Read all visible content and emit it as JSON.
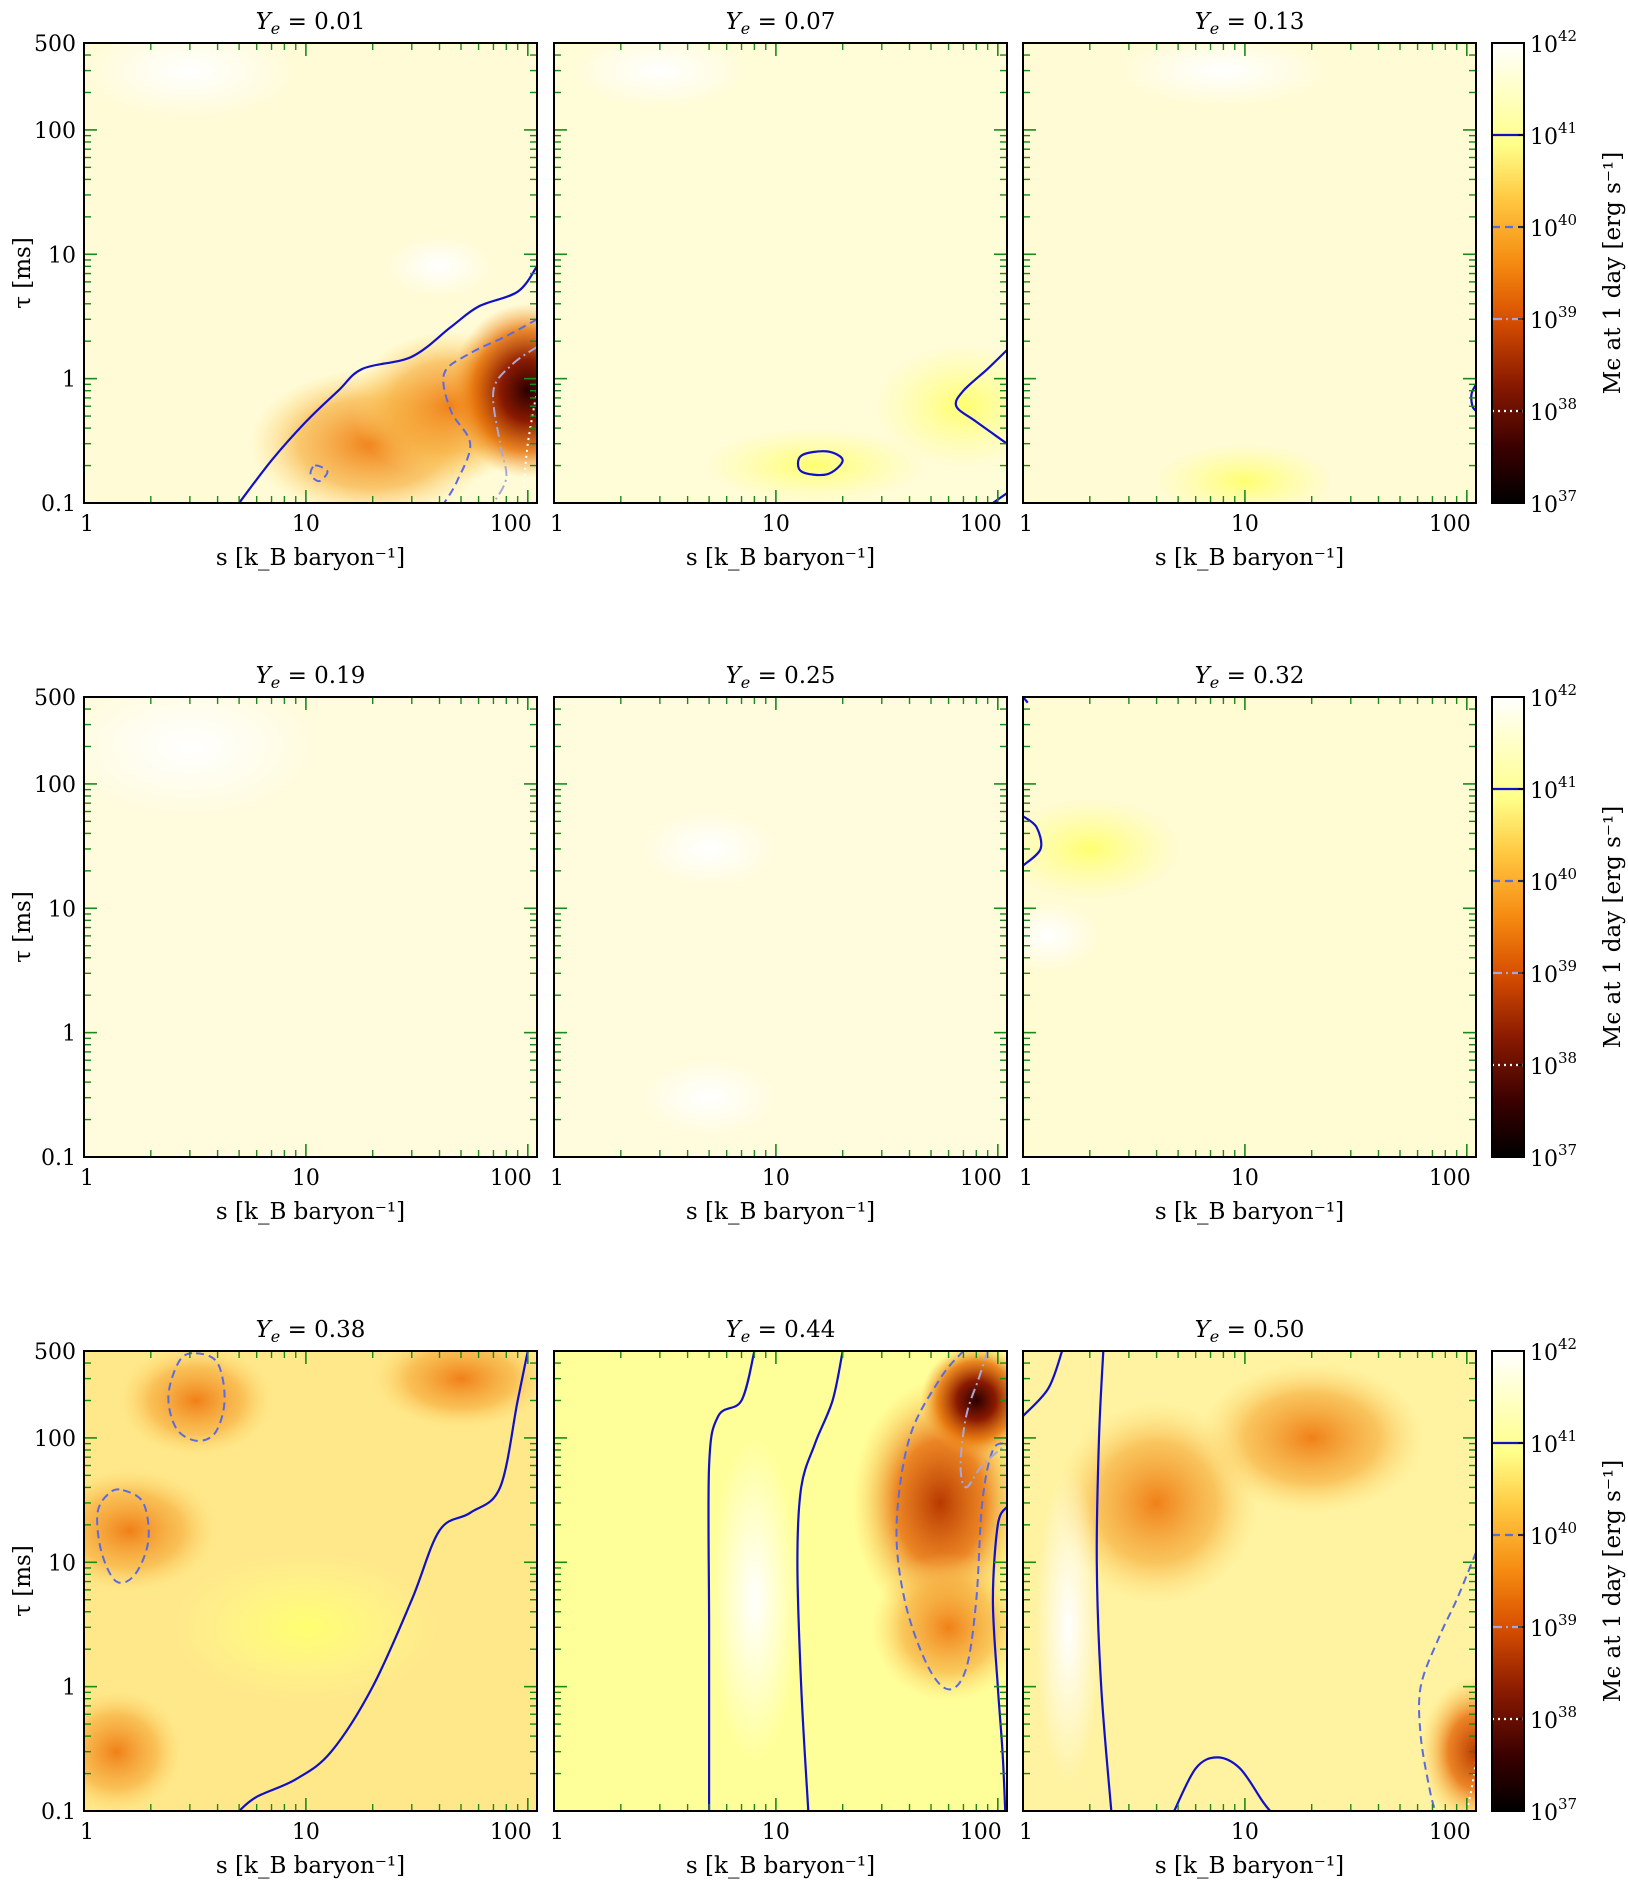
{
  "chart_data": {
    "type": "heatmap",
    "description_ref": "3x3 grid of contour heatmaps of Mε at 1 day as function of entropy s and expansion timescale τ",
    "xlabel": "s [k_B baryon⁻¹]",
    "ylabel": "τ [ms]",
    "xscale": "log",
    "yscale": "log",
    "xlim": [
      1,
      110
    ],
    "ylim": [
      0.1,
      500
    ],
    "xticks": [
      1,
      10,
      100
    ],
    "xtick_labels": [
      "1",
      "10",
      "100"
    ],
    "yticks": [
      0.1,
      1,
      10,
      100,
      500
    ],
    "ytick_labels": [
      "0.1",
      "1",
      "10",
      "100",
      "500"
    ],
    "colorbar": {
      "label": "Mϵ at 1 day [erg s⁻¹]",
      "scale": "log",
      "range": [
        37,
        42
      ],
      "ticks": [
        {
          "exp": 42,
          "base": "10",
          "sup": "42"
        },
        {
          "exp": 41,
          "base": "10",
          "sup": "41"
        },
        {
          "exp": 40,
          "base": "10",
          "sup": "40"
        },
        {
          "exp": 39,
          "base": "10",
          "sup": "39"
        },
        {
          "exp": 38,
          "base": "10",
          "sup": "38"
        },
        {
          "exp": 37,
          "base": "10",
          "sup": "37"
        }
      ],
      "contour_levels": [
        {
          "exp": 41,
          "style": "solid",
          "color": "#1010c8"
        },
        {
          "exp": 40,
          "style": "dashed",
          "color": "#5a6ae0"
        },
        {
          "exp": 39,
          "style": "dashdot",
          "color": "#a8a8d8"
        },
        {
          "exp": 38,
          "style": "dotted",
          "color": "#ffffff"
        }
      ]
    },
    "panels": [
      {
        "ye": "0.01",
        "title_prefix": "Y",
        "title_sub": "e",
        "title_rest": " = 0.01"
      },
      {
        "ye": "0.07",
        "title_prefix": "Y",
        "title_sub": "e",
        "title_rest": " = 0.07"
      },
      {
        "ye": "0.13",
        "title_prefix": "Y",
        "title_sub": "e",
        "title_rest": " = 0.13"
      },
      {
        "ye": "0.19",
        "title_prefix": "Y",
        "title_sub": "e",
        "title_rest": " = 0.19"
      },
      {
        "ye": "0.25",
        "title_prefix": "Y",
        "title_sub": "e",
        "title_rest": " = 0.25"
      },
      {
        "ye": "0.32",
        "title_prefix": "Y",
        "title_sub": "e",
        "title_rest": " = 0.32"
      },
      {
        "ye": "0.38",
        "title_prefix": "Y",
        "title_sub": "e",
        "title_rest": " = 0.38"
      },
      {
        "ye": "0.44",
        "title_prefix": "Y",
        "title_sub": "e",
        "title_rest": " = 0.44"
      },
      {
        "ye": "0.50",
        "title_prefix": "Y",
        "title_sub": "e",
        "title_rest": " = 0.50"
      }
    ]
  }
}
